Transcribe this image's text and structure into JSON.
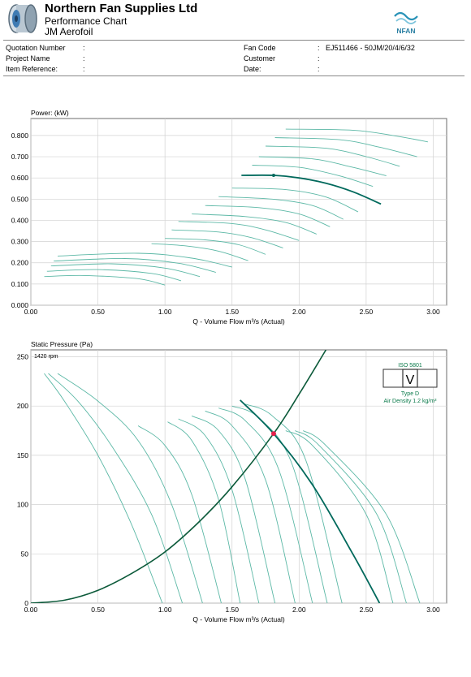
{
  "header": {
    "company": "Northern Fan Supplies Ltd",
    "subtitle1": "Performance Chart",
    "subtitle2": "JM Aerofoil",
    "brand": "NFAN"
  },
  "info": {
    "left": [
      {
        "label": "Quotation Number",
        "value": ""
      },
      {
        "label": "Project Name",
        "value": ""
      },
      {
        "label": "Item Reference:",
        "value": ""
      }
    ],
    "right": [
      {
        "label": "Fan Code",
        "value": "EJ511466 - 50JM/20/4/6/32"
      },
      {
        "label": "Customer",
        "value": ""
      },
      {
        "label": "Date:",
        "value": ""
      }
    ],
    "separator": ":"
  },
  "iso": {
    "standard": "ISO 5801",
    "letter": "V",
    "type": "Type D",
    "density": "Air Density  1.2  kg/m³"
  },
  "colors": {
    "curve": "#5cb8a6",
    "selected": "#00695c",
    "system": "#0c5a3a",
    "point": "#e3214c",
    "grid": "#d2d2d2"
  },
  "chart_data": [
    {
      "type": "line",
      "ylabel": "Power:  (kW)",
      "xlabel": "Q - Volume Flow m³/s (Actual)",
      "xlim": [
        0,
        3.1
      ],
      "ylim": [
        0,
        0.88
      ],
      "xticks": [
        "0.00",
        "0.50",
        "1.00",
        "1.50",
        "2.00",
        "2.50",
        "3.00"
      ],
      "yticks": [
        "0.000",
        "0.100",
        "0.200",
        "0.300",
        "0.400",
        "0.500",
        "0.600",
        "0.700",
        "0.800"
      ],
      "grid": true,
      "series": [
        {
          "x": [
            0.1,
            0.4,
            0.8,
            1.0
          ],
          "y": [
            0.135,
            0.14,
            0.125,
            0.095
          ]
        },
        {
          "x": [
            0.12,
            0.5,
            0.9,
            1.12
          ],
          "y": [
            0.16,
            0.168,
            0.15,
            0.115
          ]
        },
        {
          "x": [
            0.15,
            0.6,
            1.0,
            1.26
          ],
          "y": [
            0.185,
            0.195,
            0.175,
            0.135
          ]
        },
        {
          "x": [
            0.17,
            0.7,
            1.1,
            1.38
          ],
          "y": [
            0.208,
            0.22,
            0.198,
            0.155
          ]
        },
        {
          "x": [
            0.2,
            0.8,
            1.2,
            1.5
          ],
          "y": [
            0.232,
            0.245,
            0.222,
            0.18
          ]
        },
        {
          "x": [
            0.9,
            1.15,
            1.4,
            1.62
          ],
          "y": [
            0.29,
            0.28,
            0.255,
            0.21
          ]
        },
        {
          "x": [
            1.0,
            1.3,
            1.55,
            1.75
          ],
          "y": [
            0.315,
            0.308,
            0.285,
            0.24
          ]
        },
        {
          "x": [
            1.05,
            1.4,
            1.65,
            1.88
          ],
          "y": [
            0.355,
            0.345,
            0.318,
            0.27
          ]
        },
        {
          "x": [
            1.1,
            1.5,
            1.75,
            2.0
          ],
          "y": [
            0.395,
            0.385,
            0.355,
            0.305
          ]
        },
        {
          "x": [
            1.2,
            1.6,
            1.9,
            2.13
          ],
          "y": [
            0.43,
            0.418,
            0.39,
            0.335
          ]
        },
        {
          "x": [
            1.3,
            1.7,
            2.0,
            2.23
          ],
          "y": [
            0.47,
            0.46,
            0.43,
            0.37
          ]
        },
        {
          "x": [
            1.4,
            1.8,
            2.1,
            2.33
          ],
          "y": [
            0.512,
            0.5,
            0.47,
            0.405
          ]
        },
        {
          "x": [
            1.5,
            1.9,
            2.2,
            2.44
          ],
          "y": [
            0.552,
            0.545,
            0.51,
            0.44
          ]
        },
        {
          "x": [
            1.65,
            2.0,
            2.3,
            2.55
          ],
          "y": [
            0.66,
            0.65,
            0.61,
            0.56
          ]
        },
        {
          "x": [
            1.7,
            2.1,
            2.4,
            2.65
          ],
          "y": [
            0.7,
            0.69,
            0.65,
            0.61
          ]
        },
        {
          "x": [
            1.75,
            2.2,
            2.5,
            2.75
          ],
          "y": [
            0.75,
            0.74,
            0.7,
            0.655
          ]
        },
        {
          "x": [
            1.82,
            2.3,
            2.6,
            2.88
          ],
          "y": [
            0.79,
            0.78,
            0.745,
            0.7
          ]
        },
        {
          "x": [
            1.9,
            2.4,
            2.7,
            2.96
          ],
          "y": [
            0.83,
            0.825,
            0.8,
            0.77
          ]
        },
        {
          "x": [
            1.57,
            1.81,
            2.0,
            2.2,
            2.4,
            2.61
          ],
          "y": [
            0.612,
            0.612,
            0.6,
            0.575,
            0.535,
            0.477
          ],
          "selected": true
        }
      ],
      "duty_point": {
        "x": 1.81,
        "y": 0.612
      }
    },
    {
      "type": "line",
      "ylabel": "Static Pressure (Pa)",
      "xlabel": "Q - Volume Flow m³/s (Actual)",
      "annotation": "1420 rpm",
      "xlim": [
        0,
        3.1
      ],
      "ylim": [
        0,
        257
      ],
      "xticks": [
        "0.00",
        "0.50",
        "1.00",
        "1.50",
        "2.00",
        "2.50",
        "3.00"
      ],
      "yticks": [
        "0",
        "50",
        "100",
        "150",
        "200",
        "250"
      ],
      "grid": true,
      "series": [
        {
          "x": [
            0.1,
            0.25,
            0.5,
            0.75,
            0.98
          ],
          "y": [
            233,
            205,
            150,
            80,
            0
          ]
        },
        {
          "x": [
            0.13,
            0.35,
            0.6,
            0.9,
            1.13
          ],
          "y": [
            233,
            205,
            160,
            90,
            0
          ]
        },
        {
          "x": [
            0.2,
            0.5,
            0.8,
            1.05,
            1.28
          ],
          "y": [
            233,
            205,
            165,
            100,
            0
          ]
        },
        {
          "x": [
            0.8,
            1.0,
            1.2,
            1.42
          ],
          "y": [
            180,
            160,
            110,
            0
          ]
        },
        {
          "x": [
            1.02,
            1.2,
            1.4,
            1.56
          ],
          "y": [
            184,
            165,
            105,
            0
          ]
        },
        {
          "x": [
            1.1,
            1.3,
            1.5,
            1.7
          ],
          "y": [
            187,
            170,
            115,
            0
          ]
        },
        {
          "x": [
            1.2,
            1.4,
            1.6,
            1.82
          ],
          "y": [
            190,
            175,
            125,
            0
          ]
        },
        {
          "x": [
            1.3,
            1.5,
            1.75,
            1.97
          ],
          "y": [
            195,
            180,
            125,
            0
          ]
        },
        {
          "x": [
            1.4,
            1.6,
            1.85,
            2.1
          ],
          "y": [
            198,
            185,
            135,
            0
          ]
        },
        {
          "x": [
            1.5,
            1.7,
            1.95,
            2.21
          ],
          "y": [
            200,
            188,
            140,
            0
          ]
        },
        {
          "x": [
            1.6,
            1.8,
            2.05,
            2.32
          ],
          "y": [
            202,
            190,
            145,
            0
          ]
        },
        {
          "x": [
            1.9,
            2.1,
            2.5,
            2.7
          ],
          "y": [
            175,
            160,
            90,
            0
          ]
        },
        {
          "x": [
            1.97,
            2.15,
            2.58,
            2.8
          ],
          "y": [
            175,
            160,
            90,
            0
          ]
        },
        {
          "x": [
            2.03,
            2.2,
            2.65,
            2.9
          ],
          "y": [
            175,
            160,
            90,
            0
          ]
        },
        {
          "x": [
            1.56,
            1.81,
            2.1,
            2.4,
            2.6
          ],
          "y": [
            206,
            172,
            120,
            50,
            0
          ],
          "selected": true
        },
        {
          "x": [
            0,
            0.25,
            0.5,
            0.75,
            1.0,
            1.25,
            1.5,
            1.81,
            2.0,
            2.2
          ],
          "y": [
            0,
            3,
            13,
            30,
            52,
            82,
            118,
            172,
            212,
            257
          ],
          "system": true
        }
      ],
      "duty_point": {
        "x": 1.81,
        "y": 172
      }
    }
  ]
}
